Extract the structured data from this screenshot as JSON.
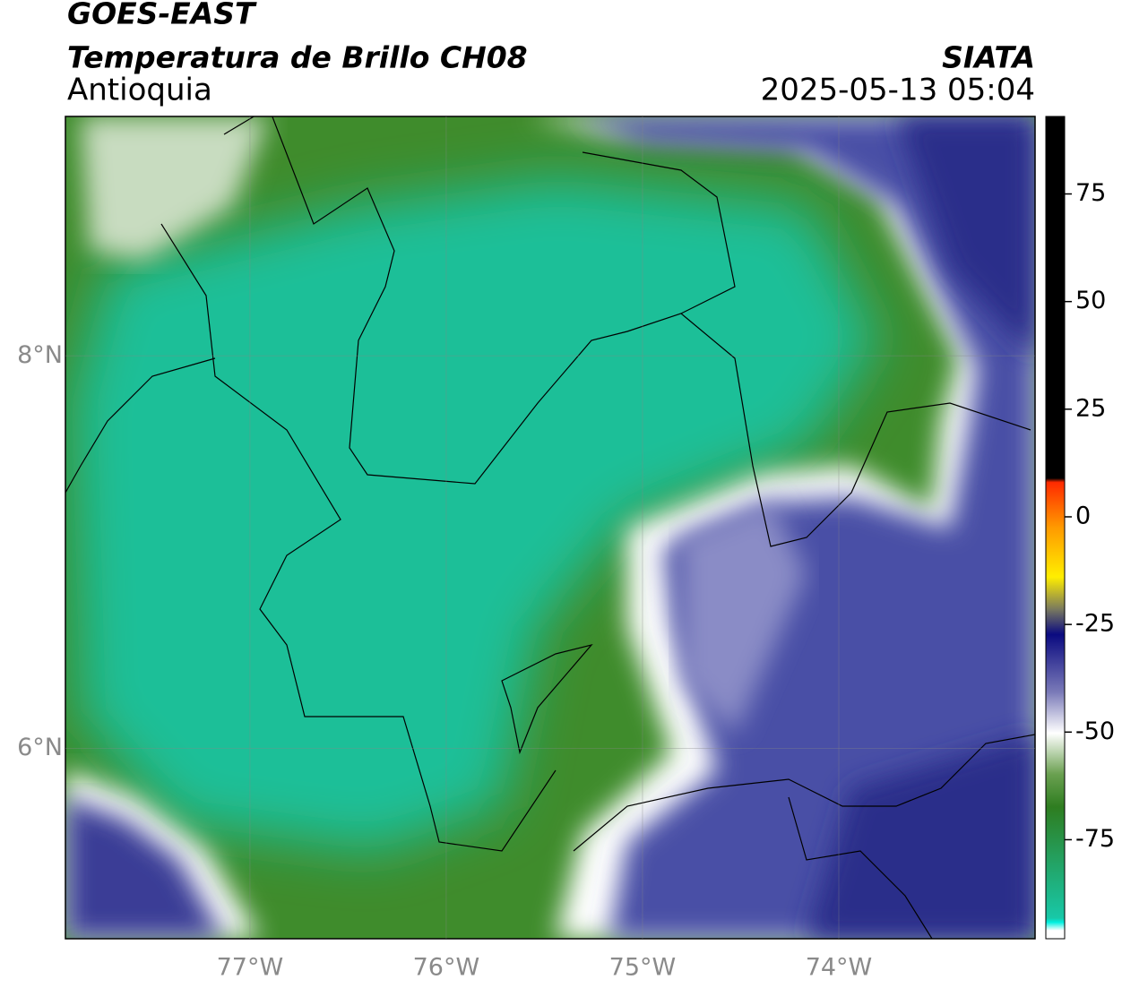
{
  "header": {
    "title": "GOES-EAST",
    "subtitle": "Temperatura de Brillo CH08",
    "region": "Antioquia",
    "source": "SIATA",
    "datetime": "2025-05-13 05:04"
  },
  "map": {
    "lonlim": [
      -77.94,
      -73
    ],
    "latlim": [
      5.03,
      9.22
    ],
    "lon_ticks": [
      {
        "value": -77,
        "label": "77°W"
      },
      {
        "value": -76,
        "label": "76°W"
      },
      {
        "value": -75,
        "label": "75°W"
      },
      {
        "value": -74,
        "label": "74°W"
      }
    ],
    "lat_ticks": [
      {
        "value": 8,
        "label": "8°N"
      },
      {
        "value": 6,
        "label": "6°N"
      }
    ]
  },
  "colorbar": {
    "lim": [
      -98,
      93
    ],
    "ticks": [
      75,
      50,
      25,
      0,
      -25,
      -50,
      -75
    ]
  }
}
